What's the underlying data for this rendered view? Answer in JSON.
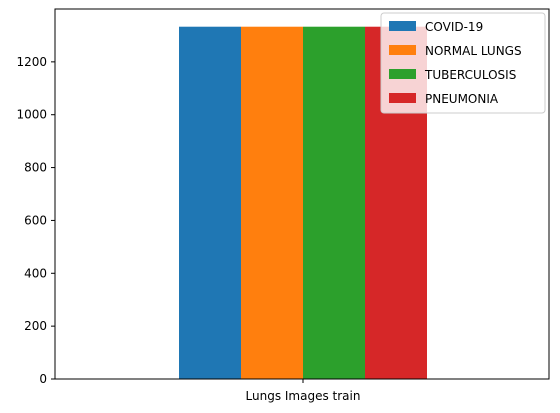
{
  "chart_data": {
    "type": "bar",
    "categories": [
      "Lungs Images train"
    ],
    "series": [
      {
        "name": "COVID-19",
        "values": [
          1333
        ],
        "color": "#1f77b4"
      },
      {
        "name": "NORMAL LUNGS",
        "values": [
          1333
        ],
        "color": "#ff7f0e"
      },
      {
        "name": "TUBERCULOSIS",
        "values": [
          1333
        ],
        "color": "#2ca02c"
      },
      {
        "name": "PNEUMONIA",
        "values": [
          1333
        ],
        "color": "#d62728"
      }
    ],
    "yticks": [
      0,
      200,
      400,
      600,
      800,
      1000,
      1200
    ],
    "ylim": [
      0,
      1400
    ],
    "grid": false,
    "legend_position": "top-right"
  }
}
